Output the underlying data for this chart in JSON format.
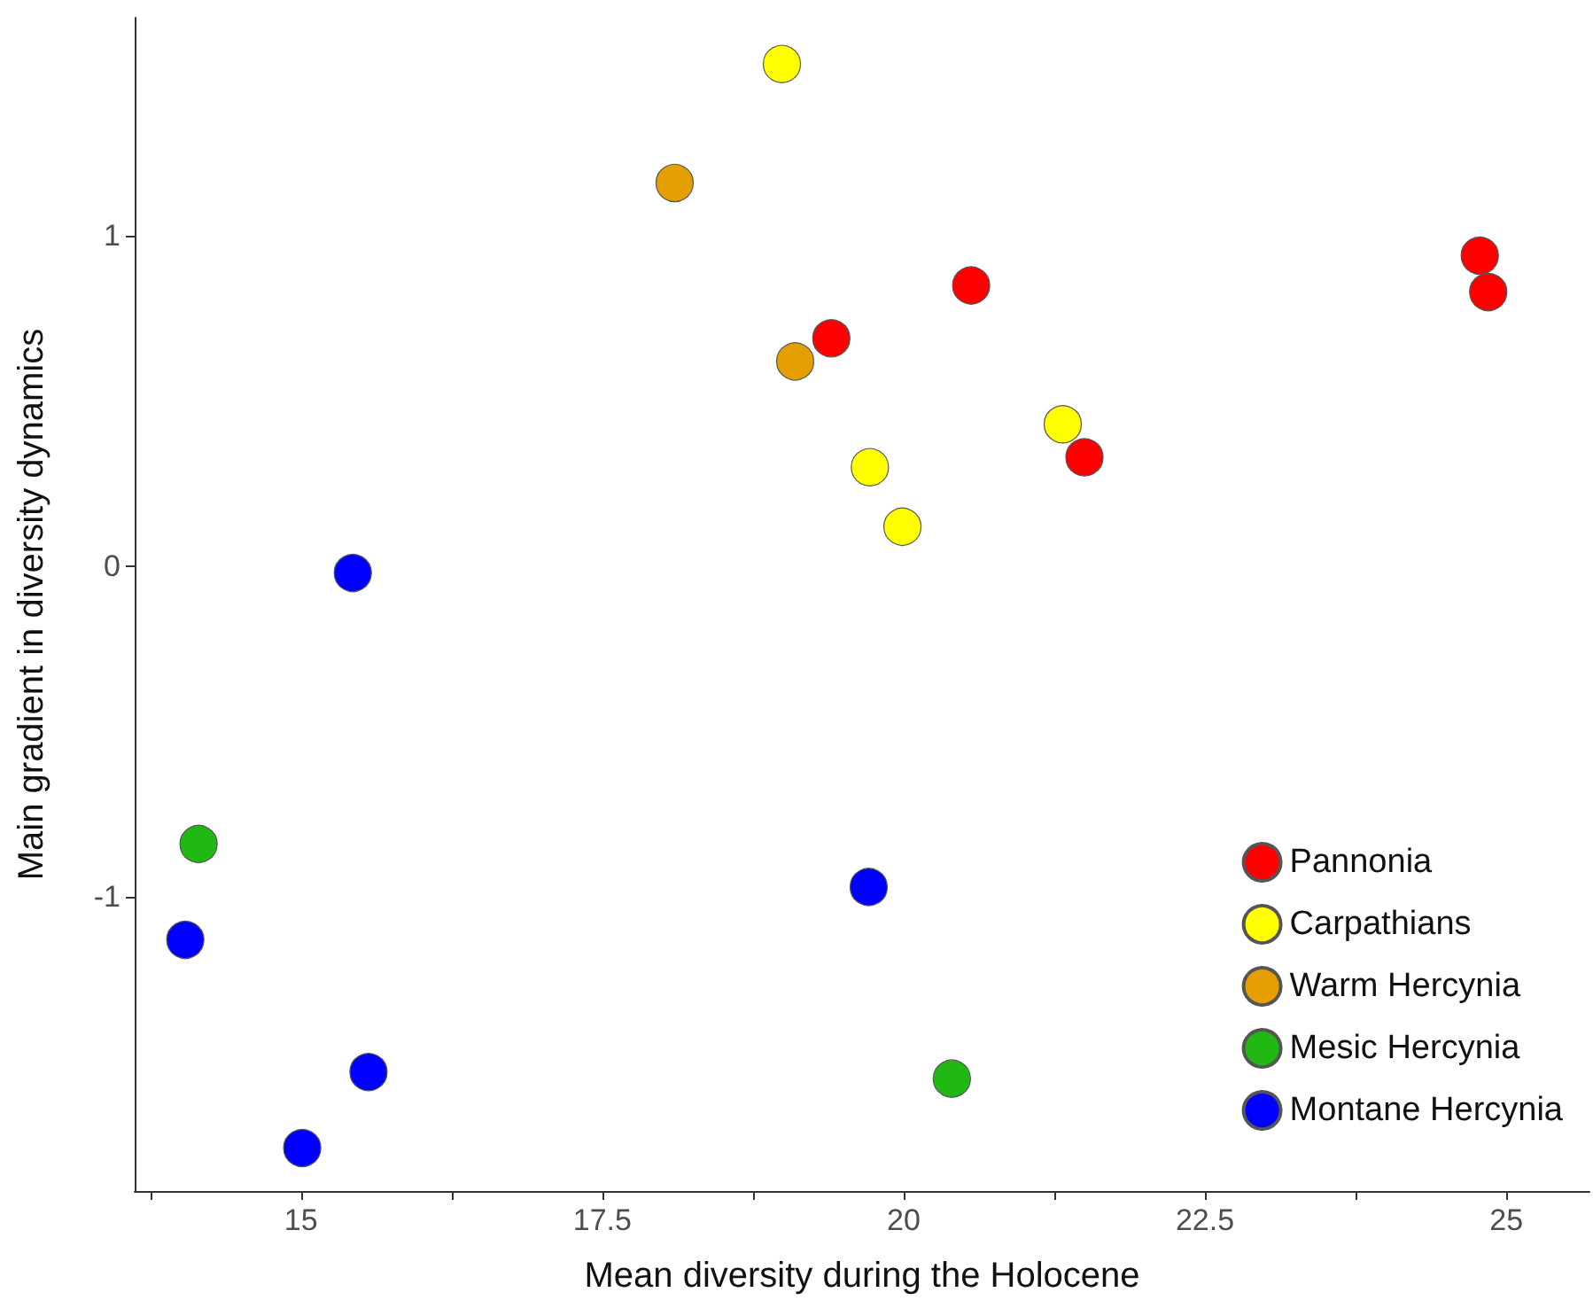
{
  "chart_data": {
    "type": "scatter",
    "xlabel": "Mean diversity during the Holocene",
    "ylabel": "Main gradient in diversity dynamics",
    "xlim": [
      13.62,
      25.69
    ],
    "ylim": [
      -1.89,
      1.66
    ],
    "xticks": [
      {
        "value": 13.75,
        "label": null
      },
      15,
      {
        "value": 16.25,
        "label": null
      },
      17.5,
      {
        "value": 18.75,
        "label": null
      },
      20,
      {
        "value": 21.25,
        "label": null
      },
      22.5,
      {
        "value": 23.75,
        "label": null
      },
      25
    ],
    "yticks": [
      -1,
      0,
      1
    ],
    "grid": false,
    "legend": "bottom right",
    "marker": "circle",
    "series": [
      {
        "name": "Pannonia",
        "color": "#ff0000",
        "x": [
          19.4,
          20.56,
          21.5,
          24.78,
          24.85
        ],
        "values": [
          0.69,
          0.85,
          0.33,
          0.94,
          0.83
        ]
      },
      {
        "name": "Carpathians",
        "color": "#ffff00",
        "x": [
          18.99,
          21.32,
          19.72,
          19.99
        ],
        "values": [
          1.52,
          0.43,
          0.3,
          0.12
        ]
      },
      {
        "name": "Warm Hercynia",
        "color": "#e69f00",
        "x": [
          18.1,
          19.1
        ],
        "values": [
          1.16,
          0.62
        ]
      },
      {
        "name": "Mesic Hercynia",
        "color": "#22b814",
        "x": [
          14.15,
          20.4
        ],
        "values": [
          -0.84,
          -1.55
        ]
      },
      {
        "name": "Montane Hercynia",
        "color": "#0000ff",
        "x": [
          15.43,
          14.04,
          15.56,
          15.01,
          19.71
        ],
        "values": [
          -0.02,
          -1.13,
          -1.53,
          -1.76,
          -0.97
        ]
      }
    ]
  }
}
